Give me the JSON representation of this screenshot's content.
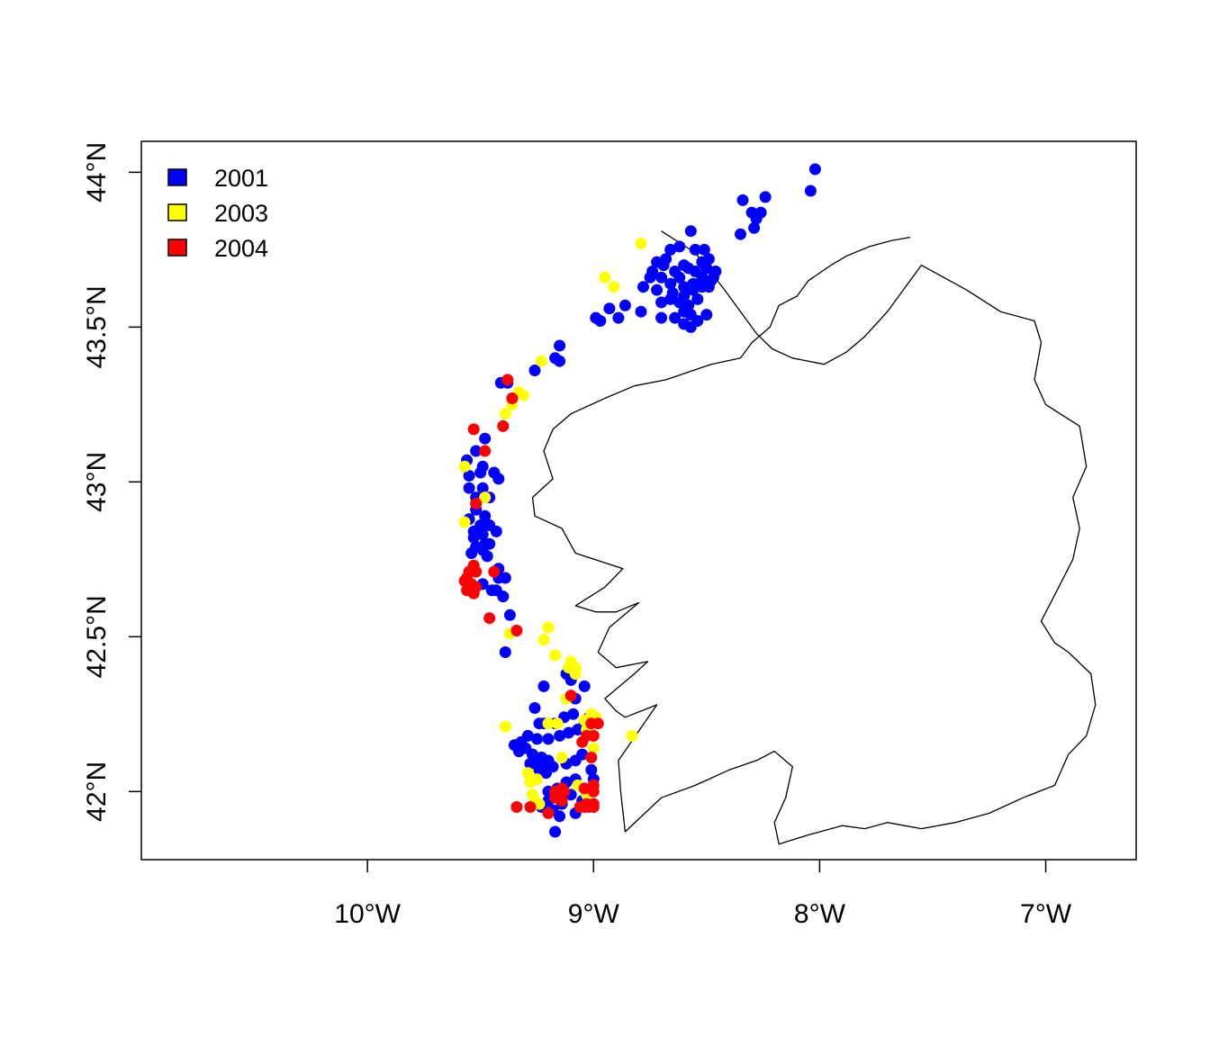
{
  "chart_data": {
    "type": "scatter",
    "title": "",
    "xlabel": "",
    "ylabel": "",
    "xlim": [
      -11.0,
      -6.6
    ],
    "ylim": [
      41.78,
      44.1
    ],
    "x_ticks": [
      {
        "value": -10,
        "label": "10°W"
      },
      {
        "value": -9,
        "label": "9°W"
      },
      {
        "value": -8,
        "label": "8°W"
      },
      {
        "value": -7,
        "label": "7°W"
      }
    ],
    "y_ticks": [
      {
        "value": 42.0,
        "label": "42°N"
      },
      {
        "value": 42.5,
        "label": "42.5°N"
      },
      {
        "value": 43.0,
        "label": "43°N"
      },
      {
        "value": 43.5,
        "label": "43.5°N"
      },
      {
        "value": 44.0,
        "label": "44°N"
      }
    ],
    "legend_position": "top-left",
    "coastline": [
      [
        -8.7,
        43.81
      ],
      [
        -8.55,
        43.74
      ],
      [
        -8.42,
        43.62
      ],
      [
        -8.35,
        43.55
      ],
      [
        -8.28,
        43.48
      ],
      [
        -8.21,
        43.43
      ],
      [
        -8.12,
        43.4
      ],
      [
        -7.98,
        43.38
      ],
      [
        -7.88,
        43.42
      ],
      [
        -7.8,
        43.47
      ],
      [
        -7.7,
        43.55
      ],
      [
        -7.63,
        43.62
      ],
      [
        -7.55,
        43.7
      ],
      [
        -7.35,
        43.62
      ],
      [
        -7.2,
        43.55
      ],
      [
        -7.05,
        43.52
      ],
      [
        -7.02,
        43.45
      ],
      [
        -7.05,
        43.33
      ],
      [
        -7.0,
        43.25
      ],
      [
        -6.85,
        43.18
      ],
      [
        -6.82,
        43.05
      ],
      [
        -6.88,
        42.95
      ],
      [
        -6.85,
        42.85
      ],
      [
        -6.88,
        42.75
      ],
      [
        -6.95,
        42.65
      ],
      [
        -7.02,
        42.55
      ],
      [
        -6.96,
        42.48
      ],
      [
        -6.9,
        42.45
      ],
      [
        -6.8,
        42.38
      ],
      [
        -6.78,
        42.28
      ],
      [
        -6.82,
        42.18
      ],
      [
        -6.9,
        42.12
      ],
      [
        -6.96,
        42.02
      ],
      [
        -7.1,
        41.98
      ],
      [
        -7.25,
        41.93
      ],
      [
        -7.4,
        41.9
      ],
      [
        -7.55,
        41.88
      ],
      [
        -7.7,
        41.9
      ],
      [
        -7.8,
        41.88
      ],
      [
        -7.9,
        41.89
      ],
      [
        -8.05,
        41.86
      ],
      [
        -8.18,
        41.83
      ],
      [
        -8.2,
        41.9
      ],
      [
        -8.15,
        41.98
      ],
      [
        -8.12,
        42.08
      ],
      [
        -8.2,
        42.13
      ],
      [
        -8.28,
        42.1
      ],
      [
        -8.4,
        42.07
      ],
      [
        -8.55,
        42.02
      ],
      [
        -8.7,
        41.98
      ],
      [
        -8.86,
        41.87
      ],
      [
        -8.88,
        42.0
      ],
      [
        -8.89,
        42.1
      ],
      [
        -8.72,
        42.28
      ],
      [
        -8.86,
        42.24
      ],
      [
        -8.9,
        42.26
      ],
      [
        -8.95,
        42.3
      ],
      [
        -8.82,
        42.38
      ],
      [
        -8.76,
        42.42
      ],
      [
        -8.9,
        42.4
      ],
      [
        -8.98,
        42.45
      ],
      [
        -8.93,
        42.53
      ],
      [
        -8.8,
        42.61
      ],
      [
        -8.9,
        42.58
      ],
      [
        -8.99,
        42.58
      ],
      [
        -9.08,
        42.6
      ],
      [
        -8.95,
        42.66
      ],
      [
        -8.87,
        42.72
      ],
      [
        -9.08,
        42.77
      ],
      [
        -9.14,
        42.85
      ],
      [
        -9.26,
        42.89
      ],
      [
        -9.27,
        42.95
      ],
      [
        -9.18,
        43.01
      ],
      [
        -9.22,
        43.1
      ],
      [
        -9.18,
        43.17
      ],
      [
        -9.1,
        43.22
      ],
      [
        -8.95,
        43.27
      ],
      [
        -8.82,
        43.31
      ],
      [
        -8.68,
        43.33
      ],
      [
        -8.48,
        43.38
      ],
      [
        -8.35,
        43.4
      ],
      [
        -8.3,
        43.45
      ],
      [
        -8.22,
        43.5
      ],
      [
        -8.18,
        43.57
      ],
      [
        -8.1,
        43.6
      ],
      [
        -8.05,
        43.65
      ],
      [
        -7.95,
        43.7
      ],
      [
        -7.88,
        43.73
      ],
      [
        -7.78,
        43.76
      ],
      [
        -7.68,
        43.78
      ],
      [
        -7.6,
        43.79
      ]
    ],
    "series": [
      {
        "name": "2001",
        "color": "#0000ff",
        "points": [
          [
            -8.02,
            44.01
          ],
          [
            -8.04,
            43.94
          ],
          [
            -8.24,
            43.92
          ],
          [
            -8.34,
            43.91
          ],
          [
            -8.3,
            43.87
          ],
          [
            -8.26,
            43.87
          ],
          [
            -8.28,
            43.85
          ],
          [
            -8.29,
            43.82
          ],
          [
            -8.35,
            43.8
          ],
          [
            -8.57,
            43.81
          ],
          [
            -8.62,
            43.76
          ],
          [
            -8.66,
            43.75
          ],
          [
            -8.55,
            43.75
          ],
          [
            -8.51,
            43.75
          ],
          [
            -8.49,
            43.72
          ],
          [
            -8.52,
            43.71
          ],
          [
            -8.6,
            43.7
          ],
          [
            -8.68,
            43.72
          ],
          [
            -8.72,
            43.71
          ],
          [
            -8.74,
            43.68
          ],
          [
            -8.69,
            43.7
          ],
          [
            -8.64,
            43.68
          ],
          [
            -8.62,
            43.66
          ],
          [
            -8.58,
            43.69
          ],
          [
            -8.55,
            43.68
          ],
          [
            -8.5,
            43.69
          ],
          [
            -8.46,
            43.68
          ],
          [
            -8.48,
            43.65
          ],
          [
            -8.52,
            43.66
          ],
          [
            -8.56,
            43.64
          ],
          [
            -8.6,
            43.63
          ],
          [
            -8.66,
            43.64
          ],
          [
            -8.7,
            43.66
          ],
          [
            -8.75,
            43.66
          ],
          [
            -8.78,
            43.63
          ],
          [
            -8.72,
            43.62
          ],
          [
            -8.65,
            43.61
          ],
          [
            -8.6,
            43.6
          ],
          [
            -8.56,
            43.62
          ],
          [
            -8.52,
            43.63
          ],
          [
            -8.49,
            43.63
          ],
          [
            -8.47,
            43.66
          ],
          [
            -8.54,
            43.59
          ],
          [
            -8.58,
            43.57
          ],
          [
            -8.62,
            43.58
          ],
          [
            -8.66,
            43.59
          ],
          [
            -8.7,
            43.58
          ],
          [
            -8.57,
            43.54
          ],
          [
            -8.6,
            43.55
          ],
          [
            -8.64,
            43.53
          ],
          [
            -8.7,
            43.53
          ],
          [
            -8.6,
            43.51
          ],
          [
            -8.57,
            43.5
          ],
          [
            -8.54,
            43.52
          ],
          [
            -8.5,
            43.54
          ],
          [
            -8.86,
            43.57
          ],
          [
            -8.93,
            43.56
          ],
          [
            -8.97,
            43.52
          ],
          [
            -8.99,
            43.53
          ],
          [
            -8.89,
            43.53
          ],
          [
            -8.79,
            43.55
          ],
          [
            -9.15,
            43.44
          ],
          [
            -9.17,
            43.4
          ],
          [
            -9.15,
            43.39
          ],
          [
            -9.26,
            43.36
          ],
          [
            -9.41,
            43.32
          ],
          [
            -9.38,
            43.32
          ],
          [
            -9.48,
            43.14
          ],
          [
            -9.52,
            43.1
          ],
          [
            -9.56,
            43.07
          ],
          [
            -9.49,
            43.05
          ],
          [
            -9.44,
            43.03
          ],
          [
            -9.5,
            43.03
          ],
          [
            -9.55,
            43.02
          ],
          [
            -9.42,
            43.01
          ],
          [
            -9.49,
            42.98
          ],
          [
            -9.55,
            42.98
          ],
          [
            -9.46,
            42.95
          ],
          [
            -9.52,
            42.95
          ],
          [
            -9.52,
            42.91
          ],
          [
            -9.48,
            42.89
          ],
          [
            -9.55,
            42.88
          ],
          [
            -9.5,
            42.86
          ],
          [
            -9.46,
            42.86
          ],
          [
            -9.43,
            42.84
          ],
          [
            -9.53,
            42.84
          ],
          [
            -9.49,
            42.83
          ],
          [
            -9.53,
            42.82
          ],
          [
            -9.48,
            42.8
          ],
          [
            -9.52,
            42.79
          ],
          [
            -9.46,
            42.8
          ],
          [
            -9.49,
            42.78
          ],
          [
            -9.54,
            42.77
          ],
          [
            -9.47,
            42.76
          ],
          [
            -9.42,
            42.72
          ],
          [
            -9.39,
            42.69
          ],
          [
            -9.42,
            42.69
          ],
          [
            -9.49,
            42.67
          ],
          [
            -9.45,
            42.65
          ],
          [
            -9.43,
            42.65
          ],
          [
            -9.4,
            42.63
          ],
          [
            -9.37,
            42.57
          ],
          [
            -9.39,
            42.45
          ],
          [
            -9.22,
            42.34
          ],
          [
            -9.12,
            42.38
          ],
          [
            -9.1,
            42.36
          ],
          [
            -9.04,
            42.34
          ],
          [
            -9.08,
            42.3
          ],
          [
            -9.26,
            42.27
          ],
          [
            -9.22,
            42.22
          ],
          [
            -9.24,
            42.22
          ],
          [
            -9.17,
            42.22
          ],
          [
            -9.13,
            42.24
          ],
          [
            -9.09,
            42.25
          ],
          [
            -9.02,
            42.24
          ],
          [
            -9.04,
            42.22
          ],
          [
            -9.07,
            42.2
          ],
          [
            -9.11,
            42.19
          ],
          [
            -9.15,
            42.18
          ],
          [
            -9.2,
            42.17
          ],
          [
            -9.25,
            42.17
          ],
          [
            -9.29,
            42.18
          ],
          [
            -9.32,
            42.16
          ],
          [
            -9.35,
            42.15
          ],
          [
            -9.3,
            42.14
          ],
          [
            -9.33,
            42.13
          ],
          [
            -9.27,
            42.12
          ],
          [
            -9.23,
            42.11
          ],
          [
            -9.2,
            42.1
          ],
          [
            -9.26,
            42.1
          ],
          [
            -9.28,
            42.09
          ],
          [
            -9.22,
            42.08
          ],
          [
            -9.24,
            42.07
          ],
          [
            -9.21,
            42.06
          ],
          [
            -9.18,
            42.08
          ],
          [
            -9.12,
            42.09
          ],
          [
            -9.08,
            42.1
          ],
          [
            -9.05,
            42.12
          ],
          [
            -9.01,
            42.07
          ],
          [
            -9.0,
            42.04
          ],
          [
            -9.08,
            42.04
          ],
          [
            -9.12,
            42.03
          ],
          [
            -9.16,
            42.01
          ],
          [
            -9.2,
            42.0
          ],
          [
            -9.1,
            41.99
          ],
          [
            -9.05,
            41.97
          ],
          [
            -9.14,
            41.96
          ],
          [
            -9.2,
            41.97
          ],
          [
            -9.23,
            41.95
          ],
          [
            -9.18,
            41.94
          ],
          [
            -9.08,
            41.93
          ],
          [
            -9.15,
            41.92
          ],
          [
            -9.17,
            41.87
          ]
        ]
      },
      {
        "name": "2003",
        "color": "#ffff00",
        "points": [
          [
            -8.79,
            43.77
          ],
          [
            -8.95,
            43.66
          ],
          [
            -8.91,
            43.63
          ],
          [
            -9.23,
            43.39
          ],
          [
            -9.33,
            43.29
          ],
          [
            -9.31,
            43.28
          ],
          [
            -9.36,
            43.25
          ],
          [
            -9.39,
            43.22
          ],
          [
            -9.57,
            43.05
          ],
          [
            -9.48,
            42.95
          ],
          [
            -9.57,
            42.87
          ],
          [
            -9.37,
            42.51
          ],
          [
            -9.2,
            42.53
          ],
          [
            -9.22,
            42.49
          ],
          [
            -9.17,
            42.44
          ],
          [
            -9.1,
            42.42
          ],
          [
            -9.08,
            42.4
          ],
          [
            -9.11,
            42.4
          ],
          [
            -9.08,
            42.38
          ],
          [
            -9.12,
            42.3
          ],
          [
            -9.01,
            42.25
          ],
          [
            -8.99,
            42.24
          ],
          [
            -9.04,
            42.23
          ],
          [
            -9.2,
            42.22
          ],
          [
            -9.16,
            42.22
          ],
          [
            -9.39,
            42.21
          ],
          [
            -9.03,
            42.2
          ],
          [
            -8.83,
            42.18
          ],
          [
            -9.0,
            42.14
          ],
          [
            -9.14,
            42.11
          ],
          [
            -9.29,
            42.06
          ],
          [
            -9.25,
            42.04
          ],
          [
            -9.28,
            42.03
          ],
          [
            -9.0,
            42.02
          ],
          [
            -9.07,
            42.02
          ],
          [
            -9.03,
            41.99
          ],
          [
            -9.27,
            41.99
          ],
          [
            -9.26,
            41.97
          ],
          [
            -9.24,
            41.96
          ],
          [
            -9.03,
            41.96
          ]
        ]
      },
      {
        "name": "2004",
        "color": "#ff0000",
        "points": [
          [
            -9.38,
            43.33
          ],
          [
            -9.36,
            43.27
          ],
          [
            -9.4,
            43.18
          ],
          [
            -9.53,
            43.17
          ],
          [
            -9.48,
            43.1
          ],
          [
            -9.52,
            42.93
          ],
          [
            -9.53,
            42.73
          ],
          [
            -9.55,
            42.71
          ],
          [
            -9.52,
            42.71
          ],
          [
            -9.56,
            42.69
          ],
          [
            -9.44,
            42.71
          ],
          [
            -9.57,
            42.68
          ],
          [
            -9.54,
            42.67
          ],
          [
            -9.52,
            42.66
          ],
          [
            -9.56,
            42.65
          ],
          [
            -9.53,
            42.64
          ],
          [
            -9.46,
            42.56
          ],
          [
            -9.34,
            42.52
          ],
          [
            -9.1,
            42.31
          ],
          [
            -9.01,
            42.22
          ],
          [
            -8.98,
            42.22
          ],
          [
            -9.03,
            42.18
          ],
          [
            -9.0,
            42.18
          ],
          [
            -9.05,
            42.16
          ],
          [
            -9.01,
            42.11
          ],
          [
            -9.0,
            42.02
          ],
          [
            -9.04,
            42.01
          ],
          [
            -9.0,
            42.0
          ],
          [
            -9.14,
            42.01
          ],
          [
            -9.17,
            42.0
          ],
          [
            -9.13,
            42.0
          ],
          [
            -9.17,
            41.98
          ],
          [
            -9.14,
            41.97
          ],
          [
            -9.03,
            41.96
          ],
          [
            -9.0,
            41.96
          ],
          [
            -9.02,
            41.95
          ],
          [
            -9.06,
            41.95
          ],
          [
            -9.0,
            41.95
          ],
          [
            -9.04,
            41.95
          ],
          [
            -9.34,
            41.95
          ],
          [
            -9.28,
            41.95
          ],
          [
            -9.2,
            41.93
          ]
        ]
      }
    ]
  }
}
